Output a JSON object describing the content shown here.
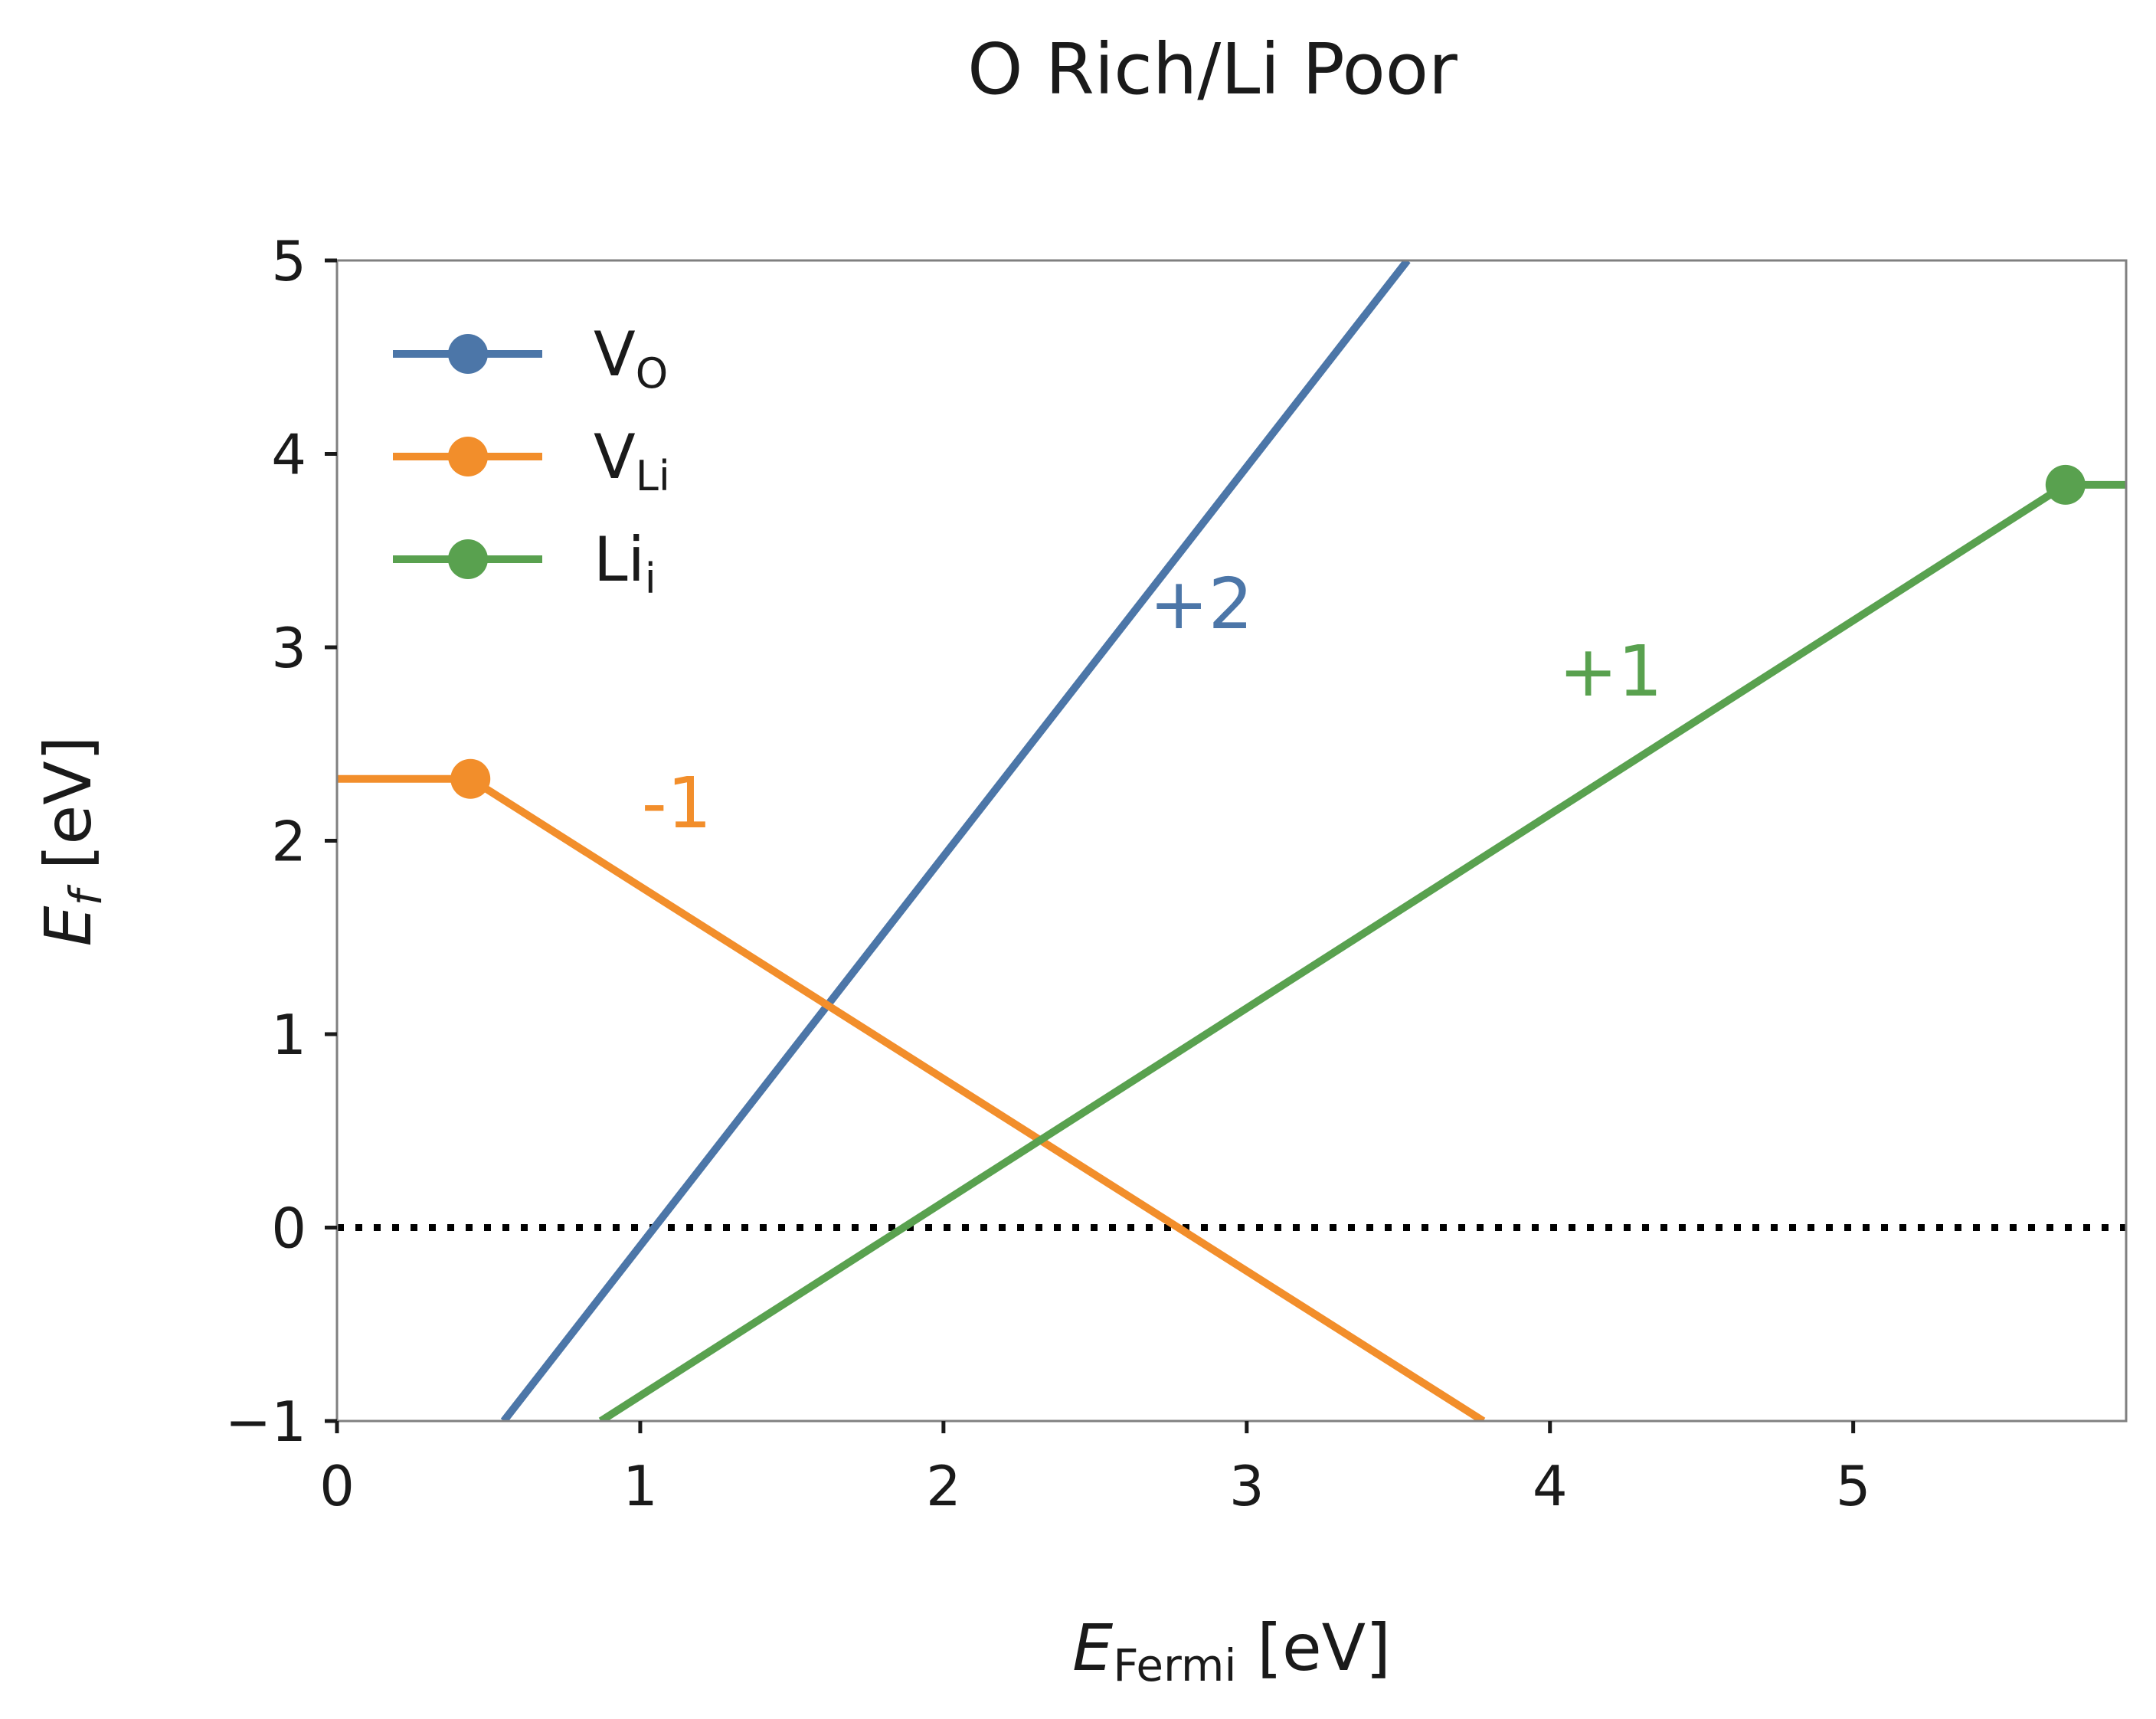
{
  "chart_data": {
    "type": "line",
    "title": "O Rich/Li Poor",
    "xlabel": {
      "main": "E",
      "sub": "Fermi",
      "unit": " [eV]"
    },
    "ylabel": {
      "main": "E",
      "sub": "f",
      "unit": " [eV]"
    },
    "xlim": [
      0,
      5.9
    ],
    "ylim": [
      -1,
      5
    ],
    "xticks": [
      0,
      1,
      2,
      3,
      4,
      5
    ],
    "xtick_labels": [
      "0",
      "1",
      "2",
      "3",
      "4",
      "5"
    ],
    "yticks": [
      -1,
      0,
      1,
      2,
      3,
      4,
      5
    ],
    "ytick_labels": [
      "−1",
      "0",
      "1",
      "2",
      "3",
      "4",
      "5"
    ],
    "grid": false,
    "legend_position": "top-left",
    "reference_line": {
      "y": 0,
      "style": "dotted",
      "color": "#000000"
    },
    "series": [
      {
        "legend_main": "V",
        "legend_sub": "O",
        "color": "#4c76a8",
        "points": [
          [
            0.55,
            -1.0
          ],
          [
            3.53,
            5.0
          ]
        ],
        "markers": [],
        "charge_label": "+2",
        "charge_label_at": [
          2.85,
          3.1
        ]
      },
      {
        "legend_main": "V",
        "legend_sub": "Li",
        "color": "#f28e2b",
        "points": [
          [
            0.0,
            2.32
          ],
          [
            0.44,
            2.32
          ],
          [
            3.78,
            -1.0
          ]
        ],
        "markers": [
          [
            0.44,
            2.32
          ]
        ],
        "charge_label": "-1",
        "charge_label_at": [
          1.12,
          2.07
        ]
      },
      {
        "legend_main": "Li",
        "legend_sub": "i",
        "color": "#59a14f",
        "points": [
          [
            0.87,
            -1.0
          ],
          [
            5.7,
            3.84
          ],
          [
            5.9,
            3.84
          ]
        ],
        "markers": [
          [
            5.7,
            3.84
          ]
        ],
        "charge_label": "+1",
        "charge_label_at": [
          4.2,
          2.75
        ]
      }
    ]
  }
}
